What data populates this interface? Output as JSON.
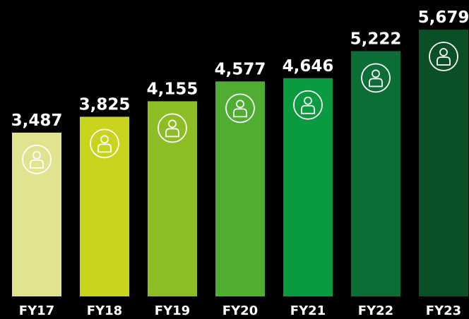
{
  "chart_data": {
    "type": "bar",
    "categories": [
      "FY17",
      "FY18",
      "FY19",
      "FY20",
      "FY21",
      "FY22",
      "FY23"
    ],
    "values": [
      3487,
      3825,
      4155,
      4577,
      4646,
      5222,
      5679
    ],
    "value_labels": [
      "3,487",
      "3,825",
      "4,155",
      "4,577",
      "4,646",
      "5,222",
      "5,679"
    ],
    "colors": [
      "#e1e38f",
      "#c8d41d",
      "#8cbe23",
      "#4fae32",
      "#0a9a3f",
      "#0b6e37",
      "#0a4f26"
    ]
  }
}
